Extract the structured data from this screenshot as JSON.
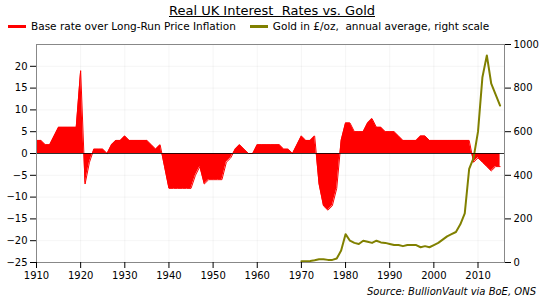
{
  "chart_data": {
    "type": "line",
    "title": "Real UK Interest  Rates vs. Gold",
    "caption": "Source: BullionVault via BoE, ONS",
    "xlim": [
      1910,
      2016
    ],
    "xticks": [
      1910,
      1920,
      1930,
      1940,
      1950,
      1960,
      1970,
      1980,
      1990,
      2000,
      2010
    ],
    "ylim": [
      -25,
      25
    ],
    "yticks": [
      -25,
      -20,
      -15,
      -10,
      -5,
      0,
      5,
      10,
      15,
      20
    ],
    "y2lim": [
      0,
      1000
    ],
    "y2ticks": [
      0,
      200,
      400,
      600,
      800,
      1000
    ],
    "grid": true,
    "legend": "top-left",
    "series": [
      {
        "name": "Base rate over Long-Run Price Inflation",
        "type": "area",
        "color": "#FF0000",
        "x": [
          1910,
          1911,
          1912,
          1913,
          1914,
          1915,
          1916,
          1917,
          1918,
          1919,
          1920,
          1921,
          1922,
          1923,
          1924,
          1925,
          1926,
          1927,
          1928,
          1929,
          1930,
          1931,
          1932,
          1933,
          1934,
          1935,
          1936,
          1937,
          1938,
          1939,
          1940,
          1941,
          1942,
          1943,
          1944,
          1945,
          1946,
          1947,
          1948,
          1949,
          1950,
          1951,
          1952,
          1953,
          1954,
          1955,
          1956,
          1957,
          1958,
          1959,
          1960,
          1961,
          1962,
          1963,
          1964,
          1965,
          1966,
          1967,
          1968,
          1969,
          1970,
          1971,
          1972,
          1973,
          1974,
          1975,
          1976,
          1977,
          1978,
          1979,
          1980,
          1981,
          1982,
          1983,
          1984,
          1985,
          1986,
          1987,
          1988,
          1989,
          1990,
          1991,
          1992,
          1993,
          1994,
          1995,
          1996,
          1997,
          1998,
          1999,
          2000,
          2001,
          2002,
          2003,
          2004,
          2005,
          2006,
          2007,
          2008,
          2009,
          2010,
          2011,
          2012,
          2013,
          2014,
          2015
        ],
        "values": [
          3,
          3,
          2,
          2,
          4,
          6,
          6,
          6,
          6,
          6,
          19,
          -7,
          -2,
          1,
          1,
          1,
          0,
          2,
          3,
          3,
          4,
          3,
          3,
          3,
          3,
          3,
          2,
          1,
          2,
          -3,
          -8,
          -8,
          -8,
          -8,
          -8,
          -8,
          -5,
          -3,
          -7,
          -6,
          -6,
          -6,
          -6,
          -2,
          -1,
          1,
          2,
          1,
          0,
          0,
          2,
          2,
          2,
          2,
          2,
          2,
          1,
          1,
          0,
          2,
          4,
          3,
          3,
          4,
          -7,
          -12,
          -13,
          -12,
          -8,
          3,
          7,
          7,
          5,
          5,
          5,
          7,
          8,
          6,
          6,
          5,
          5,
          5,
          4,
          3,
          3,
          3,
          3,
          4,
          4,
          3,
          3,
          3,
          3,
          3,
          3,
          3,
          3,
          3,
          3,
          -2,
          -1,
          -2,
          -3,
          -4,
          -3,
          -3
        ]
      },
      {
        "name": "Gold in £/oz,  annual average, right scale",
        "type": "line",
        "color": "#808000",
        "axis": "y2",
        "x": [
          1970,
          1971,
          1972,
          1973,
          1974,
          1975,
          1976,
          1977,
          1978,
          1979,
          1980,
          1981,
          1982,
          1983,
          1984,
          1985,
          1986,
          1987,
          1988,
          1989,
          1990,
          1991,
          1992,
          1993,
          1994,
          1995,
          1996,
          1997,
          1998,
          1999,
          2000,
          2001,
          2002,
          2003,
          2004,
          2005,
          2006,
          2007,
          2008,
          2009,
          2010,
          2011,
          2012,
          2013,
          2014,
          2015
        ],
        "values": [
          6,
          6,
          7,
          10,
          15,
          15,
          12,
          12,
          18,
          55,
          130,
          100,
          90,
          85,
          100,
          95,
          90,
          100,
          92,
          90,
          85,
          80,
          80,
          75,
          80,
          80,
          80,
          70,
          75,
          70,
          80,
          90,
          105,
          120,
          130,
          140,
          175,
          225,
          430,
          480,
          600,
          850,
          950,
          820,
          770,
          720
        ]
      }
    ]
  }
}
